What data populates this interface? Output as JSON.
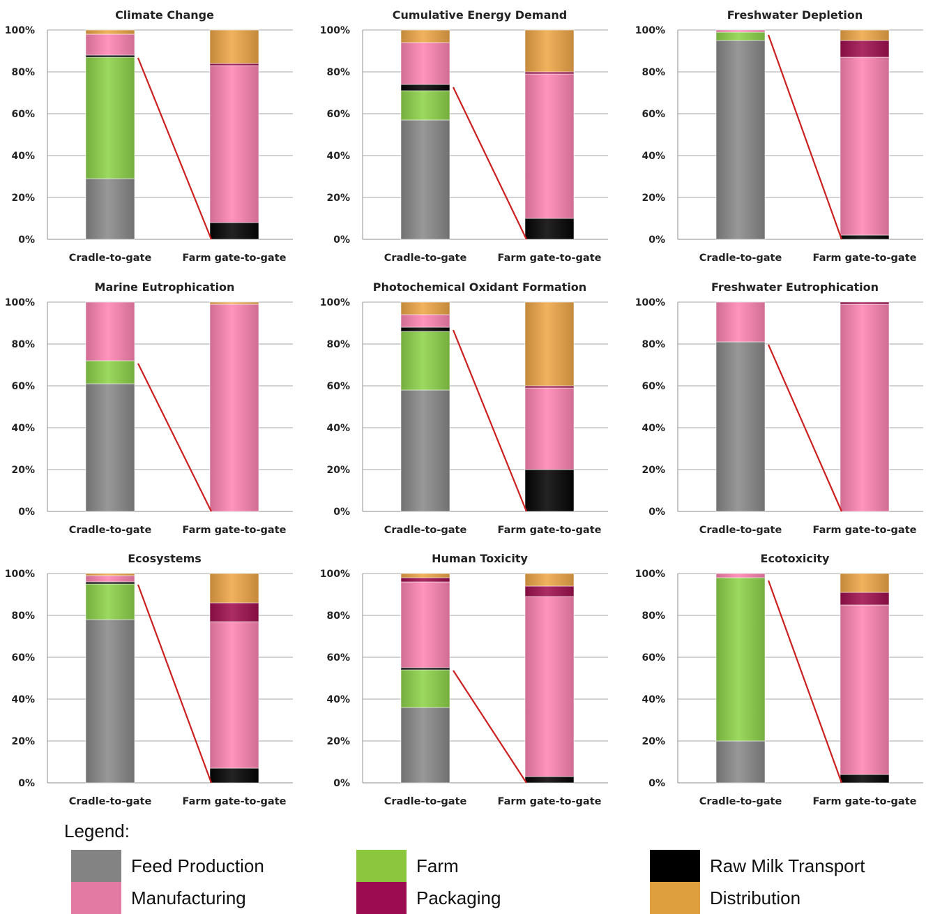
{
  "chart_data": [
    {
      "type": "bar",
      "title": "Climate Change",
      "categories": [
        "Cradle-to-gate",
        "Farm gate-to-gate"
      ],
      "ylim": [
        0,
        100
      ],
      "yticks": [
        "0%",
        "20%",
        "40%",
        "60%",
        "80%",
        "100%"
      ],
      "series": [
        {
          "name": "Feed Production",
          "values": [
            29,
            0
          ]
        },
        {
          "name": "Farm",
          "values": [
            58,
            0
          ]
        },
        {
          "name": "Raw Milk Transport",
          "values": [
            1,
            8
          ]
        },
        {
          "name": "Manufacturing",
          "values": [
            10,
            75
          ]
        },
        {
          "name": "Packaging",
          "values": [
            0,
            1
          ]
        },
        {
          "name": "Distribution",
          "values": [
            2,
            16
          ]
        }
      ]
    },
    {
      "type": "bar",
      "title": "Cumulative Energy Demand",
      "categories": [
        "Cradle-to-gate",
        "Farm gate-to-gate"
      ],
      "ylim": [
        0,
        100
      ],
      "yticks": [
        "0%",
        "20%",
        "40%",
        "60%",
        "80%",
        "100%"
      ],
      "series": [
        {
          "name": "Feed Production",
          "values": [
            57,
            0
          ]
        },
        {
          "name": "Farm",
          "values": [
            14,
            0
          ]
        },
        {
          "name": "Raw Milk Transport",
          "values": [
            3,
            10
          ]
        },
        {
          "name": "Manufacturing",
          "values": [
            20,
            69
          ]
        },
        {
          "name": "Packaging",
          "values": [
            0,
            1
          ]
        },
        {
          "name": "Distribution",
          "values": [
            6,
            20
          ]
        }
      ]
    },
    {
      "type": "bar",
      "title": "Freshwater Depletion",
      "categories": [
        "Cradle-to-gate",
        "Farm gate-to-gate"
      ],
      "ylim": [
        0,
        100
      ],
      "yticks": [
        "0%",
        "20%",
        "40%",
        "60%",
        "80%",
        "100%"
      ],
      "series": [
        {
          "name": "Feed Production",
          "values": [
            95,
            0
          ]
        },
        {
          "name": "Farm",
          "values": [
            4,
            0
          ]
        },
        {
          "name": "Raw Milk Transport",
          "values": [
            0,
            2
          ]
        },
        {
          "name": "Manufacturing",
          "values": [
            1,
            85
          ]
        },
        {
          "name": "Packaging",
          "values": [
            0,
            8
          ]
        },
        {
          "name": "Distribution",
          "values": [
            0,
            5
          ]
        }
      ]
    },
    {
      "type": "bar",
      "title": "Marine Eutrophication",
      "categories": [
        "Cradle-to-gate",
        "Farm gate-to-gate"
      ],
      "ylim": [
        0,
        100
      ],
      "yticks": [
        "0%",
        "20%",
        "40%",
        "60%",
        "80%",
        "100%"
      ],
      "series": [
        {
          "name": "Feed Production",
          "values": [
            61,
            0
          ]
        },
        {
          "name": "Farm",
          "values": [
            11,
            0
          ]
        },
        {
          "name": "Raw Milk Transport",
          "values": [
            0,
            0
          ]
        },
        {
          "name": "Manufacturing",
          "values": [
            28,
            99
          ]
        },
        {
          "name": "Packaging",
          "values": [
            0,
            0
          ]
        },
        {
          "name": "Distribution",
          "values": [
            0,
            1
          ]
        }
      ]
    },
    {
      "type": "bar",
      "title": "Photochemical Oxidant Formation",
      "categories": [
        "Cradle-to-gate",
        "Farm gate-to-gate"
      ],
      "ylim": [
        0,
        100
      ],
      "yticks": [
        "0%",
        "20%",
        "40%",
        "60%",
        "80%",
        "100%"
      ],
      "series": [
        {
          "name": "Feed Production",
          "values": [
            58,
            0
          ]
        },
        {
          "name": "Farm",
          "values": [
            28,
            0
          ]
        },
        {
          "name": "Raw Milk Transport",
          "values": [
            2,
            20
          ]
        },
        {
          "name": "Manufacturing",
          "values": [
            6,
            39
          ]
        },
        {
          "name": "Packaging",
          "values": [
            0,
            1
          ]
        },
        {
          "name": "Distribution",
          "values": [
            6,
            40
          ]
        }
      ]
    },
    {
      "type": "bar",
      "title": "Freshwater Eutrophication",
      "categories": [
        "Cradle-to-gate",
        "Farm gate-to-gate"
      ],
      "ylim": [
        0,
        100
      ],
      "yticks": [
        "0%",
        "20%",
        "40%",
        "60%",
        "80%",
        "100%"
      ],
      "series": [
        {
          "name": "Feed Production",
          "values": [
            81,
            0
          ]
        },
        {
          "name": "Farm",
          "values": [
            0,
            0
          ]
        },
        {
          "name": "Raw Milk Transport",
          "values": [
            0,
            0
          ]
        },
        {
          "name": "Manufacturing",
          "values": [
            19,
            99
          ]
        },
        {
          "name": "Packaging",
          "values": [
            0,
            1
          ]
        },
        {
          "name": "Distribution",
          "values": [
            0,
            0
          ]
        }
      ]
    },
    {
      "type": "bar",
      "title": "Ecosystems",
      "categories": [
        "Cradle-to-gate",
        "Farm gate-to-gate"
      ],
      "ylim": [
        0,
        100
      ],
      "yticks": [
        "0%",
        "20%",
        "40%",
        "60%",
        "80%",
        "100%"
      ],
      "series": [
        {
          "name": "Feed Production",
          "values": [
            78,
            0
          ]
        },
        {
          "name": "Farm",
          "values": [
            17,
            0
          ]
        },
        {
          "name": "Raw Milk Transport",
          "values": [
            1,
            7
          ]
        },
        {
          "name": "Manufacturing",
          "values": [
            3,
            70
          ]
        },
        {
          "name": "Packaging",
          "values": [
            0,
            9
          ]
        },
        {
          "name": "Distribution",
          "values": [
            1,
            14
          ]
        }
      ]
    },
    {
      "type": "bar",
      "title": "Human Toxicity",
      "categories": [
        "Cradle-to-gate",
        "Farm gate-to-gate"
      ],
      "ylim": [
        0,
        100
      ],
      "yticks": [
        "0%",
        "20%",
        "40%",
        "60%",
        "80%",
        "100%"
      ],
      "series": [
        {
          "name": "Feed Production",
          "values": [
            36,
            0
          ]
        },
        {
          "name": "Farm",
          "values": [
            18,
            0
          ]
        },
        {
          "name": "Raw Milk Transport",
          "values": [
            1,
            3
          ]
        },
        {
          "name": "Manufacturing",
          "values": [
            41,
            86
          ]
        },
        {
          "name": "Packaging",
          "values": [
            2,
            5
          ]
        },
        {
          "name": "Distribution",
          "values": [
            2,
            6
          ]
        }
      ]
    },
    {
      "type": "bar",
      "title": "Ecotoxicity",
      "categories": [
        "Cradle-to-gate",
        "Farm gate-to-gate"
      ],
      "ylim": [
        0,
        100
      ],
      "yticks": [
        "0%",
        "20%",
        "40%",
        "60%",
        "80%",
        "100%"
      ],
      "series": [
        {
          "name": "Feed Production",
          "values": [
            20,
            0
          ]
        },
        {
          "name": "Farm",
          "values": [
            78,
            0
          ]
        },
        {
          "name": "Raw Milk Transport",
          "values": [
            0,
            4
          ]
        },
        {
          "name": "Manufacturing",
          "values": [
            2,
            81
          ]
        },
        {
          "name": "Packaging",
          "values": [
            0,
            6
          ]
        },
        {
          "name": "Distribution",
          "values": [
            0,
            9
          ]
        }
      ]
    }
  ],
  "legend": {
    "title": "Legend:",
    "items": [
      {
        "name": "Feed Production",
        "color": "#838383"
      },
      {
        "name": "Farm",
        "color": "#8cc63e"
      },
      {
        "name": "Raw Milk Transport",
        "color": "#000000"
      },
      {
        "name": "Manufacturing",
        "color": "#e27aa4"
      },
      {
        "name": "Packaging",
        "color": "#9b0c50"
      },
      {
        "name": "Distribution",
        "color": "#dea03e"
      }
    ]
  },
  "series_colors": {
    "Feed Production": "#8a8a8a",
    "Farm": "#8fd44a",
    "Raw Milk Transport": "#050505",
    "Manufacturing": "#ff85b3",
    "Packaging": "#a0104f",
    "Distribution": "#efa748"
  },
  "connector_color": "#cc1f1f"
}
